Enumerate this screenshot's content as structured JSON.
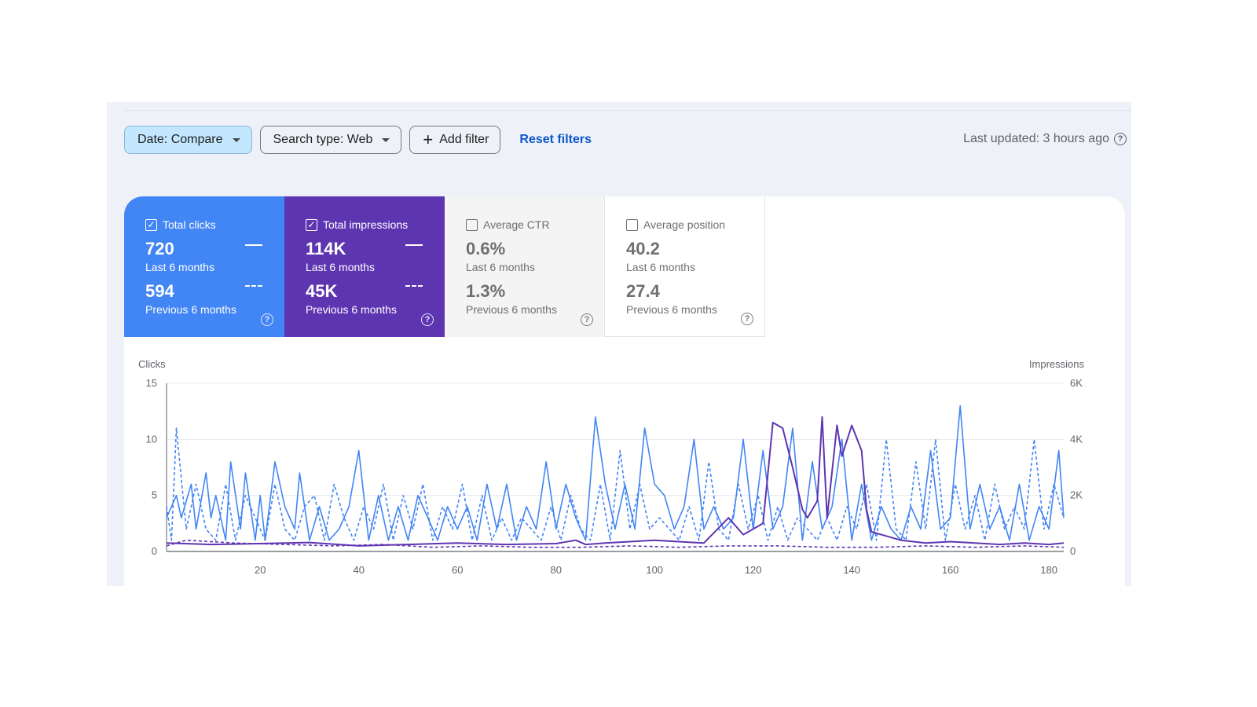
{
  "filters": {
    "date_label": "Date: Compare",
    "search_type_label": "Search type: Web",
    "add_filter_label": "Add filter",
    "reset_label": "Reset filters"
  },
  "last_updated": "Last updated: 3 hours ago",
  "help_glyph": "?",
  "tiles": [
    {
      "title": "Total clicks",
      "checked": true,
      "current": "720",
      "current_label": "Last 6 months",
      "previous": "594",
      "previous_label": "Previous 6 months",
      "color": "#4285f4"
    },
    {
      "title": "Total impressions",
      "checked": true,
      "current": "114K",
      "current_label": "Last 6 months",
      "previous": "45K",
      "previous_label": "Previous 6 months",
      "color": "#5e35b1"
    },
    {
      "title": "Average CTR",
      "checked": false,
      "current": "0.6%",
      "current_label": "Last 6 months",
      "previous": "1.3%",
      "previous_label": "Previous 6 months"
    },
    {
      "title": "Average position",
      "checked": false,
      "current": "40.2",
      "current_label": "Last 6 months",
      "previous": "27.4",
      "previous_label": "Previous 6 months"
    }
  ],
  "chart_data": {
    "type": "line",
    "ylabel_left": "Clicks",
    "ylabel_right": "Impressions",
    "y_left_ticks": [
      "0",
      "5",
      "10",
      "15"
    ],
    "y_left_range": [
      0,
      15
    ],
    "y_right_ticks": [
      "0",
      "2K",
      "4K",
      "6K"
    ],
    "y_right_range": [
      0,
      6000
    ],
    "x_ticks": [
      "20",
      "40",
      "60",
      "80",
      "100",
      "120",
      "140",
      "160",
      "180"
    ],
    "x_range": [
      1,
      183
    ],
    "grid": true,
    "colors": {
      "clicks": "#4285f4",
      "impressions": "#5e35b1"
    },
    "series": [
      {
        "axis": "left",
        "style": "solid",
        "color": "#4285f4",
        "keypoints": [
          [
            1,
            3
          ],
          [
            3,
            5
          ],
          [
            4,
            3
          ],
          [
            6,
            6
          ],
          [
            7,
            2
          ],
          [
            9,
            7
          ],
          [
            10,
            3
          ],
          [
            11,
            5
          ],
          [
            13,
            1
          ],
          [
            14,
            8
          ],
          [
            16,
            2
          ],
          [
            17,
            7
          ],
          [
            19,
            1
          ],
          [
            20,
            5
          ],
          [
            21,
            1
          ],
          [
            23,
            8
          ],
          [
            25,
            4
          ],
          [
            27,
            2
          ],
          [
            28,
            7
          ],
          [
            30,
            1
          ],
          [
            32,
            4
          ],
          [
            34,
            1
          ],
          [
            36,
            2
          ],
          [
            38,
            4
          ],
          [
            40,
            9
          ],
          [
            42,
            1
          ],
          [
            44,
            5
          ],
          [
            46,
            1
          ],
          [
            48,
            4
          ],
          [
            50,
            1
          ],
          [
            52,
            5
          ],
          [
            54,
            3
          ],
          [
            56,
            1
          ],
          [
            58,
            4
          ],
          [
            60,
            2
          ],
          [
            62,
            4
          ],
          [
            64,
            1
          ],
          [
            66,
            6
          ],
          [
            68,
            2
          ],
          [
            70,
            6
          ],
          [
            72,
            1
          ],
          [
            74,
            4
          ],
          [
            76,
            2
          ],
          [
            78,
            8
          ],
          [
            80,
            2
          ],
          [
            82,
            6
          ],
          [
            84,
            3
          ],
          [
            86,
            1
          ],
          [
            88,
            12
          ],
          [
            90,
            6
          ],
          [
            92,
            2
          ],
          [
            94,
            6
          ],
          [
            96,
            2
          ],
          [
            98,
            11
          ],
          [
            100,
            6
          ],
          [
            102,
            5
          ],
          [
            104,
            2
          ],
          [
            106,
            4
          ],
          [
            108,
            10
          ],
          [
            110,
            2
          ],
          [
            112,
            4
          ],
          [
            114,
            2
          ],
          [
            116,
            3
          ],
          [
            118,
            10
          ],
          [
            120,
            2
          ],
          [
            122,
            9
          ],
          [
            124,
            2
          ],
          [
            126,
            4
          ],
          [
            128,
            11
          ],
          [
            130,
            1
          ],
          [
            132,
            8
          ],
          [
            134,
            2
          ],
          [
            136,
            4
          ],
          [
            138,
            10
          ],
          [
            140,
            1
          ],
          [
            142,
            6
          ],
          [
            144,
            1
          ],
          [
            146,
            4
          ],
          [
            148,
            2
          ],
          [
            150,
            1
          ],
          [
            152,
            4
          ],
          [
            154,
            2
          ],
          [
            156,
            9
          ],
          [
            158,
            2
          ],
          [
            160,
            3
          ],
          [
            162,
            13
          ],
          [
            164,
            2
          ],
          [
            166,
            6
          ],
          [
            168,
            2
          ],
          [
            170,
            4
          ],
          [
            172,
            1
          ],
          [
            174,
            6
          ],
          [
            176,
            1
          ],
          [
            178,
            4
          ],
          [
            180,
            2
          ],
          [
            182,
            9
          ],
          [
            183,
            3
          ]
        ]
      },
      {
        "axis": "left",
        "style": "dashed",
        "color": "#4285f4",
        "keypoints": [
          [
            1,
            4
          ],
          [
            2,
            1
          ],
          [
            3,
            11
          ],
          [
            5,
            2
          ],
          [
            7,
            6
          ],
          [
            9,
            2
          ],
          [
            11,
            1
          ],
          [
            13,
            6
          ],
          [
            15,
            1
          ],
          [
            17,
            5
          ],
          [
            19,
            3
          ],
          [
            21,
            1
          ],
          [
            23,
            6
          ],
          [
            25,
            2
          ],
          [
            27,
            1
          ],
          [
            29,
            4
          ],
          [
            31,
            5
          ],
          [
            33,
            1
          ],
          [
            35,
            6
          ],
          [
            37,
            3
          ],
          [
            39,
            1
          ],
          [
            41,
            4
          ],
          [
            43,
            2
          ],
          [
            45,
            6
          ],
          [
            47,
            1
          ],
          [
            49,
            5
          ],
          [
            51,
            2
          ],
          [
            53,
            6
          ],
          [
            55,
            1
          ],
          [
            57,
            4
          ],
          [
            59,
            2
          ],
          [
            61,
            6
          ],
          [
            63,
            1
          ],
          [
            65,
            5
          ],
          [
            67,
            1
          ],
          [
            69,
            3
          ],
          [
            71,
            1
          ],
          [
            73,
            3
          ],
          [
            75,
            2
          ],
          [
            77,
            1
          ],
          [
            79,
            4
          ],
          [
            81,
            1
          ],
          [
            83,
            5
          ],
          [
            85,
            2
          ],
          [
            87,
            1
          ],
          [
            89,
            6
          ],
          [
            91,
            1
          ],
          [
            93,
            9
          ],
          [
            95,
            2
          ],
          [
            97,
            6
          ],
          [
            99,
            2
          ],
          [
            101,
            3
          ],
          [
            103,
            2
          ],
          [
            105,
            1
          ],
          [
            107,
            4
          ],
          [
            109,
            1
          ],
          [
            111,
            8
          ],
          [
            113,
            2
          ],
          [
            115,
            1
          ],
          [
            117,
            6
          ],
          [
            119,
            2
          ],
          [
            121,
            5
          ],
          [
            123,
            1
          ],
          [
            125,
            4
          ],
          [
            127,
            1
          ],
          [
            129,
            3
          ],
          [
            131,
            2
          ],
          [
            133,
            1
          ],
          [
            135,
            3
          ],
          [
            137,
            1
          ],
          [
            139,
            4
          ],
          [
            141,
            2
          ],
          [
            143,
            6
          ],
          [
            145,
            1
          ],
          [
            147,
            10
          ],
          [
            149,
            2
          ],
          [
            151,
            1
          ],
          [
            153,
            8
          ],
          [
            155,
            2
          ],
          [
            157,
            10
          ],
          [
            159,
            1
          ],
          [
            161,
            6
          ],
          [
            163,
            2
          ],
          [
            165,
            5
          ],
          [
            167,
            1
          ],
          [
            169,
            6
          ],
          [
            171,
            2
          ],
          [
            173,
            4
          ],
          [
            175,
            2
          ],
          [
            177,
            10
          ],
          [
            179,
            2
          ],
          [
            181,
            6
          ],
          [
            183,
            3
          ]
        ]
      },
      {
        "axis": "right",
        "style": "solid",
        "color": "#5e35b1",
        "keypoints": [
          [
            1,
            300
          ],
          [
            10,
            250
          ],
          [
            20,
            280
          ],
          [
            30,
            320
          ],
          [
            40,
            200
          ],
          [
            50,
            250
          ],
          [
            60,
            300
          ],
          [
            70,
            250
          ],
          [
            80,
            280
          ],
          [
            84,
            400
          ],
          [
            86,
            250
          ],
          [
            90,
            300
          ],
          [
            100,
            400
          ],
          [
            110,
            300
          ],
          [
            115,
            1200
          ],
          [
            118,
            600
          ],
          [
            122,
            1000
          ],
          [
            124,
            4600
          ],
          [
            126,
            4400
          ],
          [
            128,
            3000
          ],
          [
            130,
            1500
          ],
          [
            131,
            1200
          ],
          [
            133,
            1800
          ],
          [
            134,
            4800
          ],
          [
            135,
            1200
          ],
          [
            137,
            4500
          ],
          [
            138,
            3400
          ],
          [
            140,
            4500
          ],
          [
            142,
            3600
          ],
          [
            143,
            1500
          ],
          [
            144,
            700
          ],
          [
            146,
            600
          ],
          [
            150,
            400
          ],
          [
            155,
            300
          ],
          [
            160,
            350
          ],
          [
            165,
            300
          ],
          [
            170,
            250
          ],
          [
            175,
            300
          ],
          [
            180,
            250
          ],
          [
            183,
            300
          ]
        ]
      },
      {
        "axis": "right",
        "style": "dashed",
        "color": "#5e35b1",
        "keypoints": [
          [
            1,
            200
          ],
          [
            5,
            400
          ],
          [
            15,
            300
          ],
          [
            25,
            250
          ],
          [
            35,
            200
          ],
          [
            45,
            250
          ],
          [
            55,
            150
          ],
          [
            65,
            200
          ],
          [
            75,
            150
          ],
          [
            85,
            150
          ],
          [
            95,
            200
          ],
          [
            105,
            150
          ],
          [
            115,
            200
          ],
          [
            125,
            200
          ],
          [
            135,
            150
          ],
          [
            145,
            150
          ],
          [
            155,
            200
          ],
          [
            165,
            150
          ],
          [
            175,
            200
          ],
          [
            183,
            150
          ]
        ]
      }
    ]
  }
}
